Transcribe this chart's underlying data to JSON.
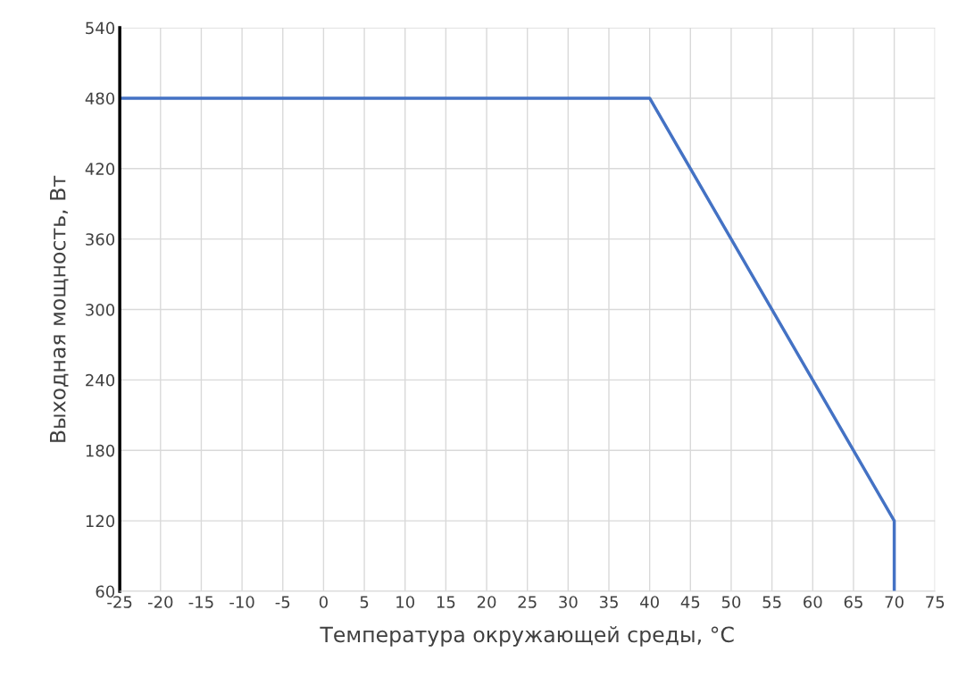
{
  "chart_data": {
    "type": "line",
    "xlabel": "Температура окружающей среды, °C",
    "ylabel": "Выходная мощность, Вт",
    "x": [
      -25,
      40,
      70,
      70
    ],
    "series": [
      {
        "color": "#4472c4",
        "values": [
          480,
          480,
          120,
          60
        ]
      }
    ],
    "xlim": [
      -25,
      75
    ],
    "xticks": [
      -25,
      -20,
      -15,
      -10,
      -5,
      0,
      5,
      10,
      15,
      20,
      25,
      30,
      35,
      40,
      45,
      50,
      55,
      60,
      65,
      70,
      75
    ],
    "ylim": [
      60,
      540
    ],
    "yticks": [
      60,
      120,
      180,
      240,
      300,
      360,
      420,
      480,
      540
    ],
    "grid": true,
    "marker": "none",
    "line_style": "solid"
  }
}
